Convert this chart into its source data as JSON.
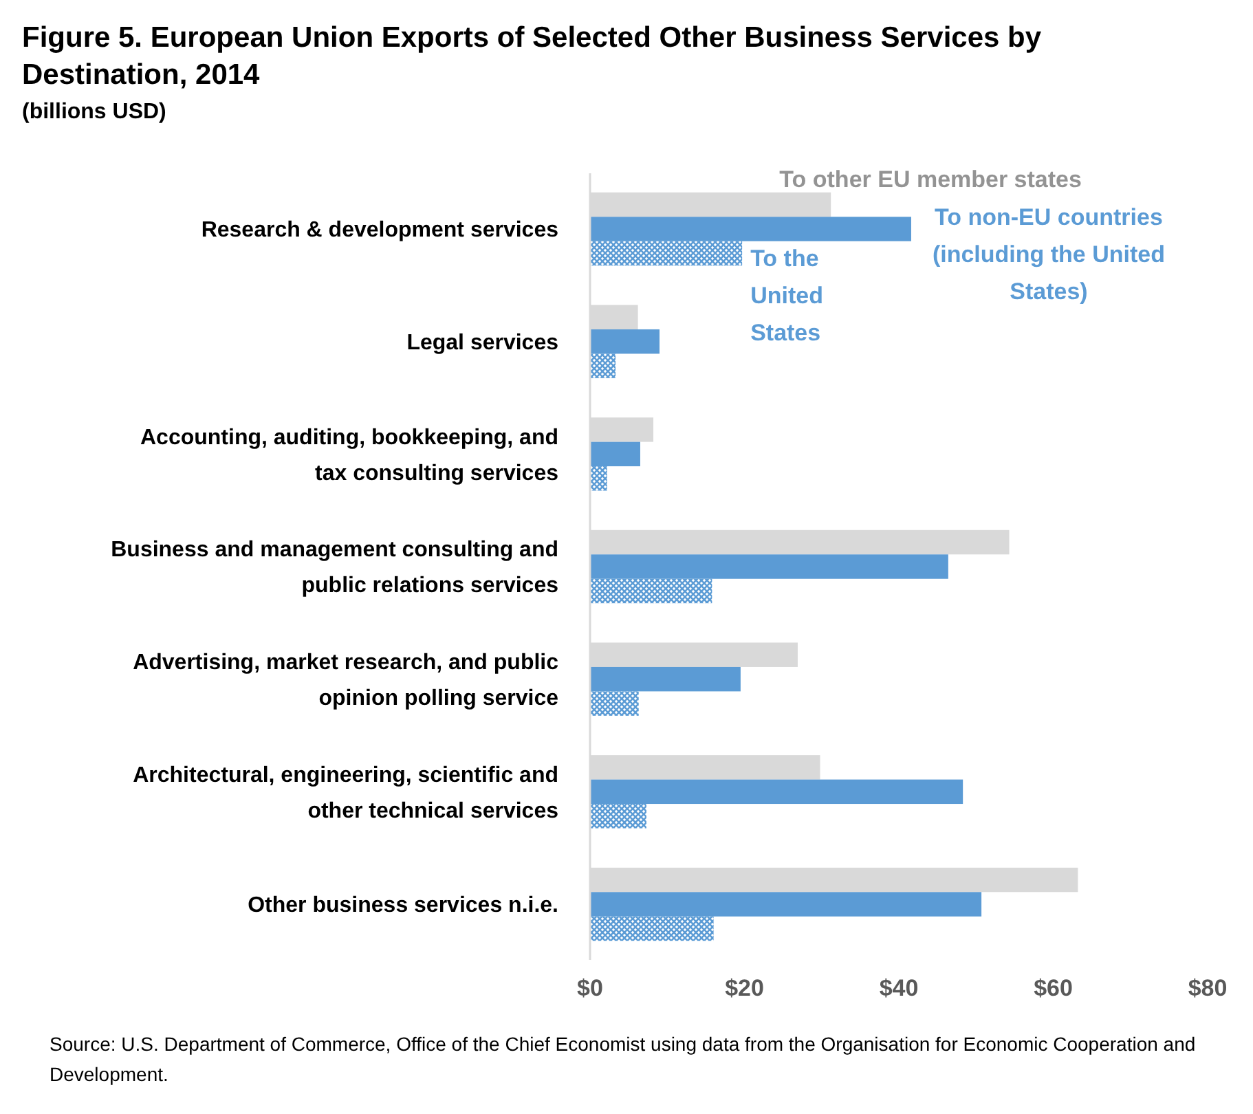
{
  "chart_data": {
    "type": "bar",
    "orientation": "horizontal",
    "title": "Figure 5. European Union Exports of Selected Other Business Services by Destination, 2014",
    "subtitle": "(billions USD)",
    "categories": [
      "Research & development services",
      "Legal services",
      "Accounting, auditing, bookkeeping, and tax consulting services",
      "Business and management consulting and public relations services",
      "Advertising, market research, and public opinion polling service",
      "Architectural, engineering, scientific and other technical services",
      "Other business services n.i.e."
    ],
    "series": [
      {
        "name": "To other EU member states",
        "color": "#d9d9d9",
        "values": [
          31.2,
          6.2,
          8.2,
          54.3,
          26.9,
          29.8,
          63.2
        ]
      },
      {
        "name": "To non-EU countries (including the United States)",
        "color": "#5b9bd5",
        "values": [
          41.6,
          9.0,
          6.5,
          46.4,
          19.5,
          48.3,
          50.7
        ]
      },
      {
        "name": "To the United States",
        "color": "#5b9bd5",
        "values": [
          19.7,
          3.3,
          2.2,
          15.8,
          6.3,
          7.3,
          16.0
        ]
      }
    ],
    "xlim": [
      0,
      80
    ],
    "xticks": [
      {
        "value": 0,
        "label": "$0"
      },
      {
        "value": 20,
        "label": "$20"
      },
      {
        "value": 40,
        "label": "$40"
      },
      {
        "value": 60,
        "label": "$60"
      },
      {
        "value": 80,
        "label": "$80"
      }
    ],
    "annotations": [
      "Source: U.S. Department of Commerce,  Office of the Chief Economist using data from the Organisation for Economic Cooperation and Development."
    ]
  }
}
